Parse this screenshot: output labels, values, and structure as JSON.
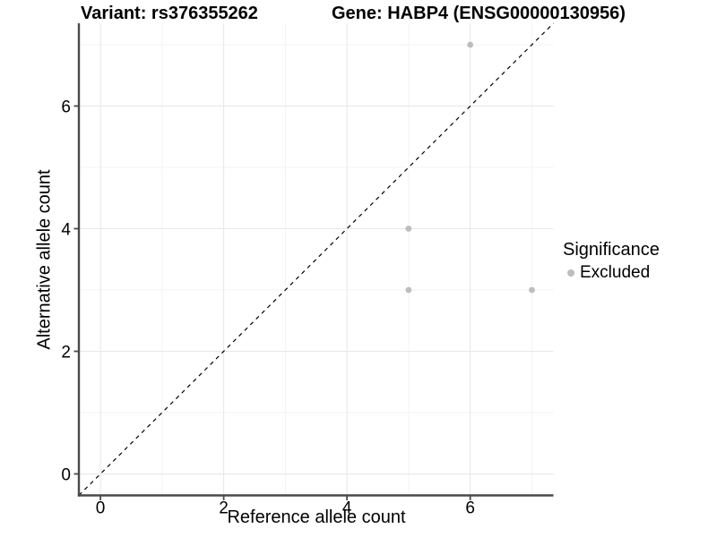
{
  "titles": {
    "variant": "Variant: rs376355262",
    "gene": "Gene: HABP4 (ENSG00000130956)"
  },
  "chart_data": {
    "type": "scatter",
    "title": "Variant: rs376355262 / Gene: HABP4 (ENSG00000130956)",
    "xlabel": "Reference allele count",
    "ylabel": "Alternative allele count",
    "xlim": [
      -0.35,
      7.35
    ],
    "ylim": [
      -0.35,
      7.35
    ],
    "x_ticks": [
      0,
      2,
      4,
      6
    ],
    "y_ticks": [
      0,
      2,
      4,
      6
    ],
    "x_minor_ticks": [
      1,
      3,
      5,
      7
    ],
    "y_minor_ticks": [
      1,
      3,
      5,
      7
    ],
    "grid": true,
    "series": [
      {
        "name": "Excluded",
        "color": "#bdbdbd",
        "points": [
          [
            6,
            7
          ],
          [
            5,
            4
          ],
          [
            5,
            3
          ],
          [
            7,
            3
          ]
        ]
      }
    ],
    "identity_line": {
      "slope": 1,
      "intercept": 0,
      "style": "dashed",
      "color": "#000000"
    },
    "legend": {
      "title": "Significance",
      "position": "right",
      "entries": [
        {
          "label": "Excluded",
          "color": "#bdbdbd"
        }
      ]
    }
  },
  "colors": {
    "background": "#ffffff",
    "point": "#bdbdbd",
    "axis_line": "#4a4a4a",
    "grid_major": "#e8e8e8",
    "grid_minor": "#f3f3f3",
    "text": "#000000"
  }
}
